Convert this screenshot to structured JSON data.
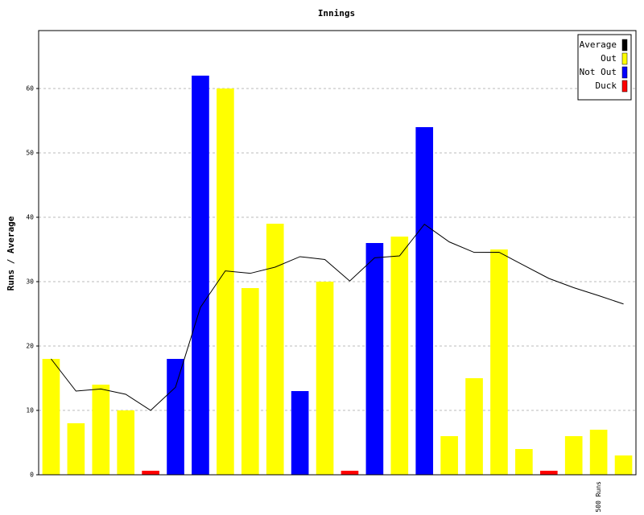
{
  "chart_data": {
    "type": "bar",
    "title": "Innings",
    "y_label": "Runs / Average",
    "categories": [
      null,
      null,
      null,
      null,
      null,
      null,
      null,
      null,
      null,
      null,
      null,
      null,
      null,
      null,
      null,
      null,
      null,
      null,
      null,
      null,
      null,
      null,
      "500 Runs",
      null
    ],
    "series": [
      {
        "name": "Average",
        "color": "#000000",
        "type": "line",
        "values": [
          18,
          13,
          13.33,
          12.5,
          10,
          13.6,
          26,
          31.67,
          31.29,
          32.25,
          33.88,
          33.44,
          30.1,
          33.7,
          34,
          38.91,
          36.17,
          34.54,
          34.57,
          32.53,
          30.5,
          29.06,
          27.83,
          26.53
        ]
      },
      {
        "name": "Out",
        "color": "#ffff00",
        "values": [
          18,
          8,
          14,
          10,
          null,
          null,
          null,
          60,
          29,
          39,
          null,
          30,
          null,
          null,
          37,
          null,
          6,
          15,
          35,
          4,
          null,
          6,
          7,
          3
        ]
      },
      {
        "name": "Not Out",
        "color": "#0000ff",
        "values": [
          null,
          null,
          null,
          null,
          null,
          18,
          62,
          null,
          null,
          null,
          13,
          null,
          null,
          36,
          null,
          54,
          null,
          null,
          null,
          null,
          null,
          null,
          null,
          null
        ]
      },
      {
        "name": "Duck",
        "color": "#ff0000",
        "values": [
          null,
          null,
          null,
          null,
          0,
          null,
          null,
          null,
          null,
          null,
          null,
          null,
          0,
          null,
          null,
          null,
          null,
          null,
          null,
          null,
          0,
          null,
          null,
          null
        ]
      }
    ],
    "ylim": [
      0,
      69
    ],
    "yticks": [
      0,
      10,
      20,
      30,
      40,
      50,
      60
    ],
    "grid": true,
    "legend": "top-right"
  }
}
